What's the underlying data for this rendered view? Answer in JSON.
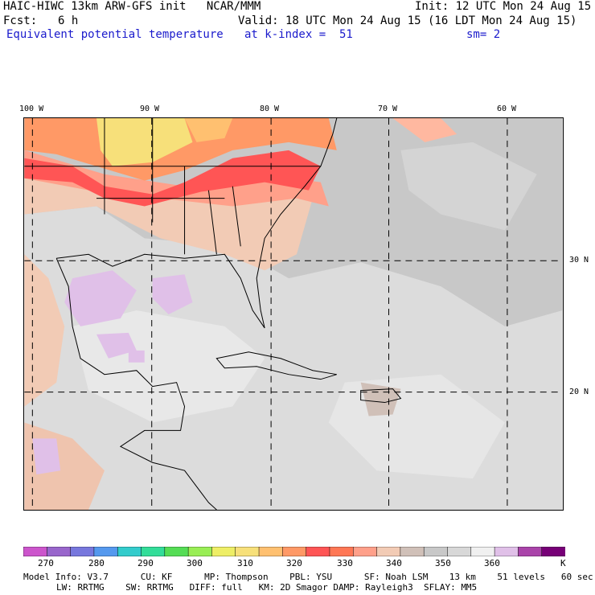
{
  "header": {
    "title": "HAIC-HIWC 13km ARW-GFS init   NCAR/MMM",
    "init": "Init: 12 UTC Mon 24 Aug 15",
    "fcst_label": "Fcst:",
    "fcst_value": "6 h",
    "valid": "Valid: 18 UTC Mon 24 Aug 15 (16 LDT Mon 24 Aug 15)",
    "field": "Equivalent potential temperature",
    "level": "at k-index =  51",
    "smoothing": "sm= 2"
  },
  "axes": {
    "lon_labels": [
      "100 W",
      "90 W",
      "80 W",
      "70 W",
      "60 W"
    ],
    "lat_labels": [
      "30 N",
      "20 N"
    ]
  },
  "colorbar": {
    "unit": "K",
    "tick_labels": [
      "270",
      "280",
      "290",
      "300",
      "310",
      "320",
      "330",
      "340",
      "350",
      "360"
    ],
    "colors": [
      "#cc55cc",
      "#9966cc",
      "#7777dd",
      "#5599ee",
      "#33cccc",
      "#33dd99",
      "#55dd55",
      "#99ee55",
      "#eeee66",
      "#f7e07a",
      "#ffc070",
      "#ff9966",
      "#ff5555",
      "#ff7755",
      "#ffa08a",
      "#f2cbb5",
      "#d0c0b8",
      "#c8c8c8",
      "#d8d8d8",
      "#f0f0f0",
      "#e0c0e8",
      "#aa44aa",
      "#770077"
    ]
  },
  "map_colors": {
    "gray": "#c8c8c8",
    "light": "#dcdcdc",
    "tan": "#f2cbb5",
    "peach": "#ffa08a",
    "orange": "#ff9966",
    "red": "#ff5555",
    "yellow": "#f7e07a",
    "lavender": "#e0c0e8",
    "brown": "#d0c0b8"
  },
  "footer": {
    "line1": "Model Info: V3.7      CU: KF      MP: Thompson    PBL: YSU      SF: Noah LSM    13 km    51 levels   60 sec",
    "line2": "LW: RRTMG    SW: RRTMG   DIFF: full   KM: 2D Smagor DAMP: Rayleigh3  SFLAY: MM5"
  }
}
